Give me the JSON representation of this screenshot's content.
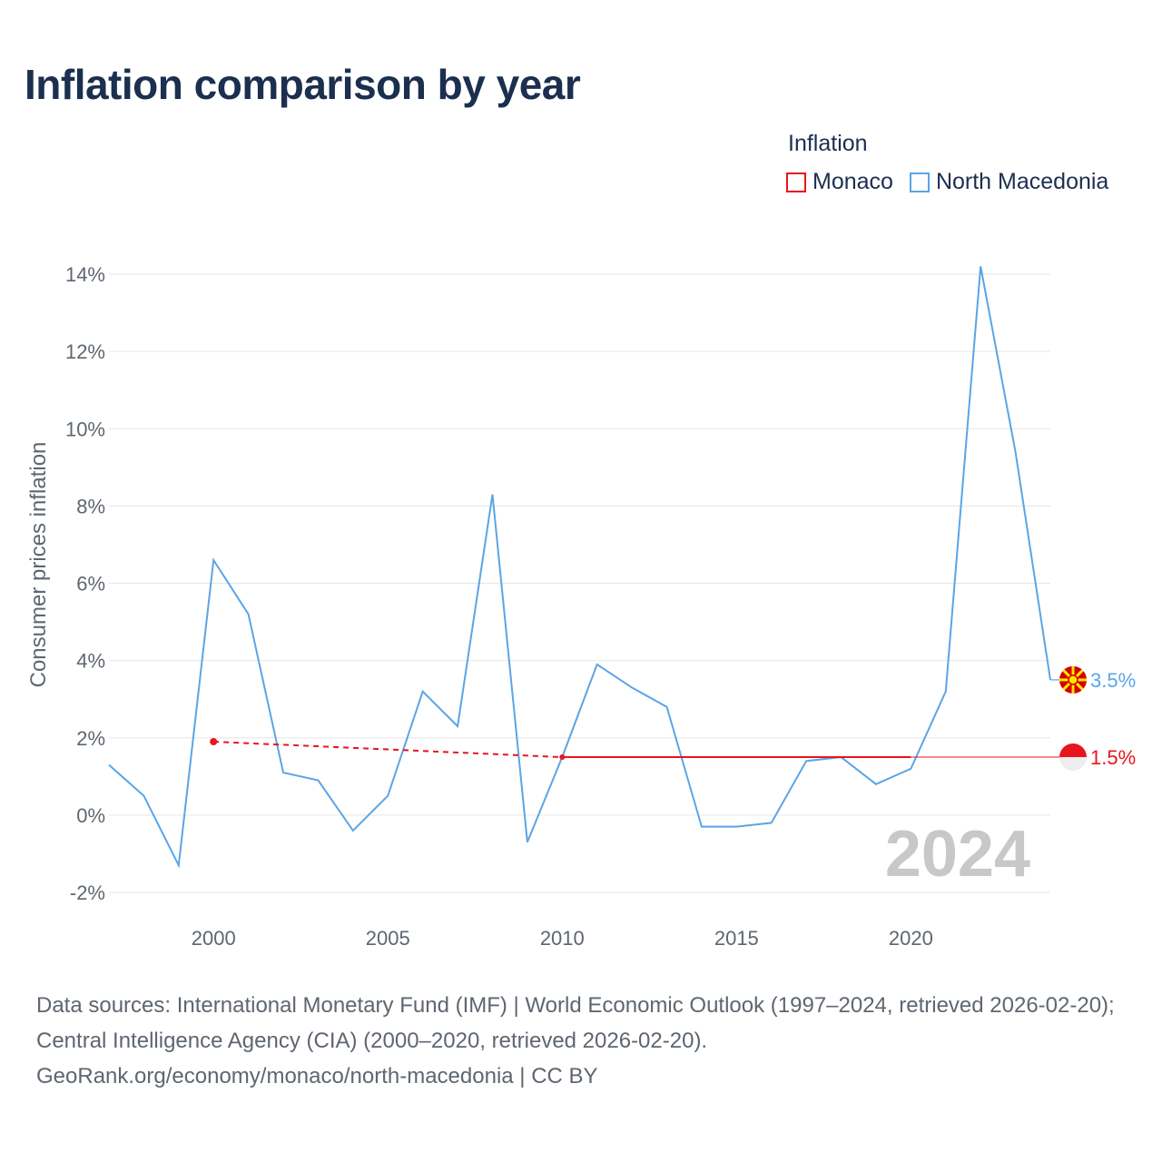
{
  "title": "Inflation comparison by year",
  "legend": {
    "title": "Inflation",
    "items": [
      {
        "label": "Monaco",
        "color": "#e8141e"
      },
      {
        "label": "North Macedonia",
        "color": "#5aa5e6"
      }
    ]
  },
  "chart_data": {
    "type": "line",
    "title": "Inflation comparison by year",
    "xlabel": "",
    "ylabel": "Consumer prices inflation",
    "xlim": [
      1997,
      2024
    ],
    "ylim": [
      -2,
      14
    ],
    "x_ticks": [
      2000,
      2005,
      2010,
      2015,
      2020
    ],
    "x_tick_labels": [
      "2000",
      "2005",
      "2010",
      "2015",
      "2020"
    ],
    "y_ticks": [
      -2,
      0,
      2,
      4,
      6,
      8,
      10,
      12,
      14
    ],
    "y_tick_labels": [
      "-2%",
      "0%",
      "2%",
      "4%",
      "6%",
      "8%",
      "10%",
      "12%",
      "14%"
    ],
    "year_watermark": "2024",
    "series": [
      {
        "name": "North Macedonia",
        "color": "#5aa5e6",
        "end_label": "3.5%",
        "points": [
          [
            1997,
            1.3
          ],
          [
            1998,
            0.5
          ],
          [
            1999,
            -1.3
          ],
          [
            2000,
            6.6
          ],
          [
            2001,
            5.2
          ],
          [
            2002,
            1.1
          ],
          [
            2003,
            0.9
          ],
          [
            2004,
            -0.4
          ],
          [
            2005,
            0.5
          ],
          [
            2006,
            3.2
          ],
          [
            2007,
            2.3
          ],
          [
            2008,
            8.3
          ],
          [
            2009,
            -0.7
          ],
          [
            2010,
            1.5
          ],
          [
            2011,
            3.9
          ],
          [
            2012,
            3.3
          ],
          [
            2013,
            2.8
          ],
          [
            2014,
            -0.3
          ],
          [
            2015,
            -0.3
          ],
          [
            2016,
            -0.2
          ],
          [
            2017,
            1.4
          ],
          [
            2018,
            1.5
          ],
          [
            2019,
            0.8
          ],
          [
            2020,
            1.2
          ],
          [
            2021,
            3.2
          ],
          [
            2022,
            14.2
          ],
          [
            2023,
            9.4
          ],
          [
            2024,
            3.5
          ]
        ]
      },
      {
        "name": "Monaco",
        "color": "#e8141e",
        "end_label": "1.5%",
        "dashed_range": [
          2000,
          2010
        ],
        "points": [
          [
            2000,
            1.9
          ],
          [
            2010,
            1.5
          ],
          [
            2011,
            1.5
          ],
          [
            2012,
            1.5
          ],
          [
            2013,
            1.5
          ],
          [
            2014,
            1.5
          ],
          [
            2015,
            1.5
          ],
          [
            2016,
            1.5
          ],
          [
            2017,
            1.5
          ],
          [
            2018,
            1.5
          ],
          [
            2019,
            1.5
          ],
          [
            2020,
            1.5
          ]
        ],
        "carry_forward_to": 2024
      }
    ]
  },
  "footer": {
    "sources": "Data sources: International Monetary Fund (IMF) | World Economic Outlook (1997–2024, retrieved 2026-02-20); Central Intelligence Agency (CIA) (2000–2020, retrieved 2026-02-20).",
    "credit": "GeoRank.org/economy/monaco/north-macedonia | CC BY"
  }
}
